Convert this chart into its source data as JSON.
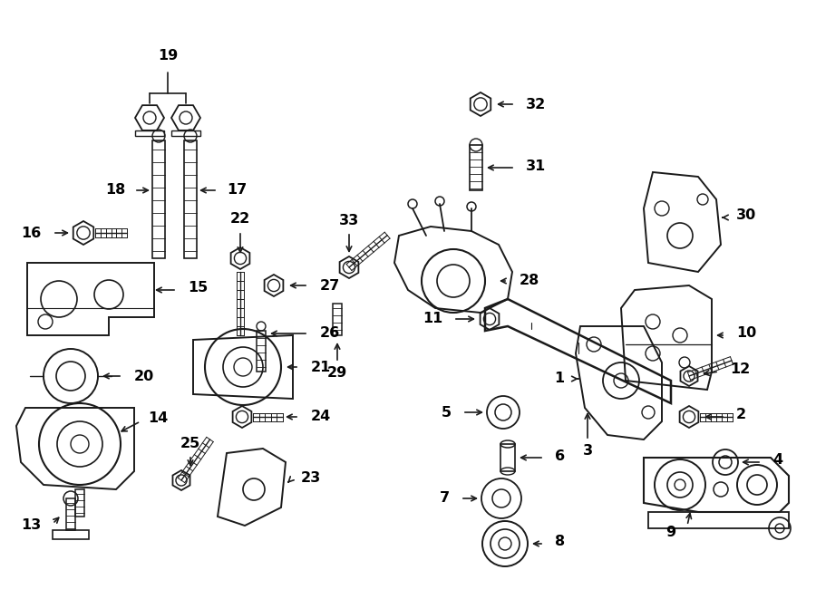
{
  "bg_color": "#ffffff",
  "line_color": "#1a1a1a",
  "fig_width": 9.0,
  "fig_height": 6.61,
  "dpi": 100,
  "title_fontsize": 10,
  "label_fontsize": 11.5
}
